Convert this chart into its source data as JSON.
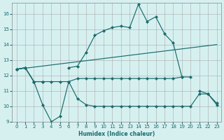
{
  "xlabel": "Humidex (Indice chaleur)",
  "background_color": "#d6f0f0",
  "grid_color": "#b0b0b0",
  "line_color": "#1a6b6b",
  "xlim": [
    -0.5,
    23.5
  ],
  "ylim": [
    9,
    16.7
  ],
  "yticks": [
    9,
    10,
    11,
    12,
    13,
    14,
    15,
    16
  ],
  "xticks": [
    0,
    1,
    2,
    3,
    4,
    5,
    6,
    7,
    8,
    9,
    10,
    11,
    12,
    13,
    14,
    15,
    16,
    17,
    18,
    19,
    20,
    21,
    22,
    23
  ],
  "curve1_x": [
    0,
    1,
    2,
    3,
    4,
    5,
    6,
    7,
    8,
    9,
    10,
    11,
    12,
    13,
    14,
    15,
    16,
    17,
    18,
    19,
    20,
    21,
    22,
    23
  ],
  "curve1_y": [
    12.4,
    12.5,
    11.6,
    10.1,
    9.0,
    9.35,
    11.6,
    10.5,
    10.1,
    10.0,
    10.0,
    10.0,
    10.0,
    10.0,
    10.0,
    10.0,
    10.0,
    10.0,
    10.0,
    10.0,
    10.0,
    10.8,
    10.8,
    10.2
  ],
  "curve2_x": [
    0,
    1,
    2,
    3,
    4,
    5,
    6,
    7,
    8,
    9,
    10,
    11,
    12,
    13,
    14,
    15,
    16,
    17,
    18,
    19,
    20,
    21,
    22,
    23
  ],
  "curve2_y": [
    12.4,
    12.5,
    11.6,
    11.6,
    null,
    null,
    12.5,
    12.6,
    13.5,
    14.6,
    14.9,
    15.1,
    15.2,
    15.1,
    16.6,
    15.5,
    15.8,
    14.7,
    14.1,
    11.9,
    null,
    11.0,
    10.8,
    10.1
  ],
  "curve3_x": [
    0,
    23
  ],
  "curve3_y": [
    12.4,
    14.0
  ],
  "curve4_x": [
    0,
    1,
    2,
    3,
    4,
    5,
    6,
    7,
    8,
    9,
    10,
    11,
    12,
    13,
    14,
    15,
    16,
    17,
    18,
    19,
    20
  ],
  "curve4_y": [
    12.4,
    12.5,
    11.6,
    11.6,
    11.6,
    11.6,
    11.6,
    11.8,
    11.8,
    11.8,
    11.8,
    11.8,
    11.8,
    11.8,
    11.8,
    11.8,
    11.8,
    11.8,
    11.8,
    11.9,
    11.9
  ]
}
